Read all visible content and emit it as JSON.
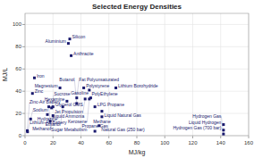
{
  "chart_data": {
    "type": "scatter",
    "title": "Selected Energy Densities",
    "xlabel": "MJ/kg",
    "ylabel": "MJ/L",
    "x": [
      31,
      32,
      33,
      6.7,
      5.3,
      25,
      42,
      65,
      46,
      37,
      43,
      47,
      46,
      30,
      37,
      17,
      19,
      20,
      27,
      50,
      55,
      16,
      20,
      4.0,
      55,
      18,
      53,
      1.6,
      1.8,
      50,
      142,
      142,
      142
    ],
    "values": [
      83,
      87,
      72,
      52,
      38,
      43,
      43,
      43,
      41,
      34,
      33,
      34,
      33,
      31,
      29,
      26,
      25,
      26,
      26,
      26,
      22,
      19,
      18,
      15,
      17,
      13,
      9,
      4.5,
      3.5,
      4,
      10,
      5,
      1.5
    ],
    "annotations": [
      "Aluminium",
      "Silicon",
      "Anthracite",
      "Iron",
      "Zinc",
      "Magnesium",
      "Polystyrene",
      "Lithium Borohydride",
      "PolyEthylene",
      "Fat Polyunsaturated",
      "Jet Propulsion",
      "Gasoline",
      "Kerosene",
      "Hexamine",
      "Butanol",
      "Sugar Metabolism",
      "Sucrose",
      "Glycerol GMS",
      "Ethanol",
      "LPG Propane",
      "Liquid Natural Gas",
      "Hydrazine",
      "Methanol",
      "Sodium",
      "Methane",
      "Liquid Ammonia",
      "Natural Gas (250 bar)",
      "Zinc-Air Battery",
      "Lithium-Air Battery",
      "Propane Gas",
      "Liquid Hydrogen",
      "Hydrogen Gas (700 bar)",
      "Hydrogen Gas"
    ],
    "color": "#1a1a6e",
    "marker": "square",
    "xlim": [
      0,
      160
    ],
    "ylim": [
      0,
      110
    ],
    "xticks": [
      0,
      20,
      40,
      60,
      80,
      100,
      120,
      140,
      160
    ],
    "yticks": [
      0,
      20,
      40,
      60,
      80,
      100
    ],
    "grid": true
  }
}
